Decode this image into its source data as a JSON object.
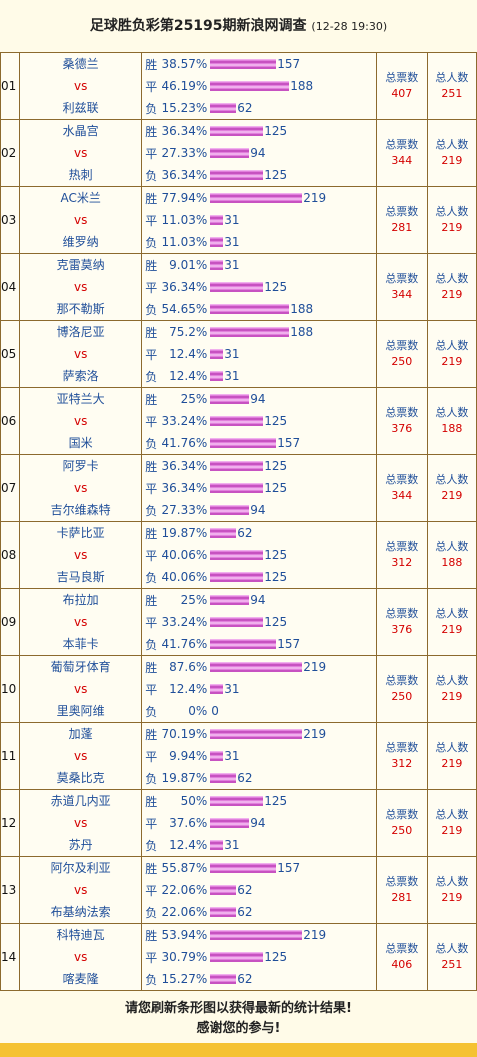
{
  "header": {
    "title": "足球胜负彩第25195期新浪网调查",
    "time": "(12-28 19:30)"
  },
  "stat_labels": {
    "votes": "总票数",
    "people": "总人数"
  },
  "matches": [
    {
      "num": "01",
      "home": "桑德兰",
      "vs": "vs",
      "away": "利兹联",
      "outcomes": [
        {
          "label": "胜",
          "pct": "38.57%",
          "count": "157"
        },
        {
          "label": "平",
          "pct": "46.19%",
          "count": "188"
        },
        {
          "label": "负",
          "pct": "15.23%",
          "count": "62"
        }
      ],
      "total_votes": "407",
      "total_people": "251"
    },
    {
      "num": "02",
      "home": "水晶宫",
      "vs": "vs",
      "away": "热刺",
      "outcomes": [
        {
          "label": "胜",
          "pct": "36.34%",
          "count": "125"
        },
        {
          "label": "平",
          "pct": "27.33%",
          "count": "94"
        },
        {
          "label": "负",
          "pct": "36.34%",
          "count": "125"
        }
      ],
      "total_votes": "344",
      "total_people": "219"
    },
    {
      "num": "03",
      "home": "AC米兰",
      "vs": "vs",
      "away": "维罗纳",
      "outcomes": [
        {
          "label": "胜",
          "pct": "77.94%",
          "count": "219"
        },
        {
          "label": "平",
          "pct": "11.03%",
          "count": "31"
        },
        {
          "label": "负",
          "pct": "11.03%",
          "count": "31"
        }
      ],
      "total_votes": "281",
      "total_people": "219"
    },
    {
      "num": "04",
      "home": "克雷莫纳",
      "vs": "vs",
      "away": "那不勒斯",
      "outcomes": [
        {
          "label": "胜",
          "pct": "9.01%",
          "count": "31"
        },
        {
          "label": "平",
          "pct": "36.34%",
          "count": "125"
        },
        {
          "label": "负",
          "pct": "54.65%",
          "count": "188"
        }
      ],
      "total_votes": "344",
      "total_people": "219"
    },
    {
      "num": "05",
      "home": "博洛尼亚",
      "vs": "vs",
      "away": "萨索洛",
      "outcomes": [
        {
          "label": "胜",
          "pct": "75.2%",
          "count": "188"
        },
        {
          "label": "平",
          "pct": "12.4%",
          "count": "31"
        },
        {
          "label": "负",
          "pct": "12.4%",
          "count": "31"
        }
      ],
      "total_votes": "250",
      "total_people": "219"
    },
    {
      "num": "06",
      "home": "亚特兰大",
      "vs": "vs",
      "away": "国米",
      "outcomes": [
        {
          "label": "胜",
          "pct": "25%",
          "count": "94"
        },
        {
          "label": "平",
          "pct": "33.24%",
          "count": "125"
        },
        {
          "label": "负",
          "pct": "41.76%",
          "count": "157"
        }
      ],
      "total_votes": "376",
      "total_people": "188"
    },
    {
      "num": "07",
      "home": "阿罗卡",
      "vs": "vs",
      "away": "吉尔维森特",
      "outcomes": [
        {
          "label": "胜",
          "pct": "36.34%",
          "count": "125"
        },
        {
          "label": "平",
          "pct": "36.34%",
          "count": "125"
        },
        {
          "label": "负",
          "pct": "27.33%",
          "count": "94"
        }
      ],
      "total_votes": "344",
      "total_people": "219"
    },
    {
      "num": "08",
      "home": "卡萨比亚",
      "vs": "vs",
      "away": "吉马良斯",
      "outcomes": [
        {
          "label": "胜",
          "pct": "19.87%",
          "count": "62"
        },
        {
          "label": "平",
          "pct": "40.06%",
          "count": "125"
        },
        {
          "label": "负",
          "pct": "40.06%",
          "count": "125"
        }
      ],
      "total_votes": "312",
      "total_people": "188"
    },
    {
      "num": "09",
      "home": "布拉加",
      "vs": "vs",
      "away": "本菲卡",
      "outcomes": [
        {
          "label": "胜",
          "pct": "25%",
          "count": "94"
        },
        {
          "label": "平",
          "pct": "33.24%",
          "count": "125"
        },
        {
          "label": "负",
          "pct": "41.76%",
          "count": "157"
        }
      ],
      "total_votes": "376",
      "total_people": "219"
    },
    {
      "num": "10",
      "home": "葡萄牙体育",
      "vs": "vs",
      "away": "里奥阿维",
      "outcomes": [
        {
          "label": "胜",
          "pct": "87.6%",
          "count": "219"
        },
        {
          "label": "平",
          "pct": "12.4%",
          "count": "31"
        },
        {
          "label": "负",
          "pct": "0%",
          "count": "0"
        }
      ],
      "total_votes": "250",
      "total_people": "219"
    },
    {
      "num": "11",
      "home": "加蓬",
      "vs": "vs",
      "away": "莫桑比克",
      "outcomes": [
        {
          "label": "胜",
          "pct": "70.19%",
          "count": "219"
        },
        {
          "label": "平",
          "pct": "9.94%",
          "count": "31"
        },
        {
          "label": "负",
          "pct": "19.87%",
          "count": "62"
        }
      ],
      "total_votes": "312",
      "total_people": "219"
    },
    {
      "num": "12",
      "home": "赤道几内亚",
      "vs": "vs",
      "away": "苏丹",
      "outcomes": [
        {
          "label": "胜",
          "pct": "50%",
          "count": "125"
        },
        {
          "label": "平",
          "pct": "37.6%",
          "count": "94"
        },
        {
          "label": "负",
          "pct": "12.4%",
          "count": "31"
        }
      ],
      "total_votes": "250",
      "total_people": "219"
    },
    {
      "num": "13",
      "home": "阿尔及利亚",
      "vs": "vs",
      "away": "布基纳法索",
      "outcomes": [
        {
          "label": "胜",
          "pct": "55.87%",
          "count": "157"
        },
        {
          "label": "平",
          "pct": "22.06%",
          "count": "62"
        },
        {
          "label": "负",
          "pct": "22.06%",
          "count": "62"
        }
      ],
      "total_votes": "281",
      "total_people": "219"
    },
    {
      "num": "14",
      "home": "科特迪瓦",
      "vs": "vs",
      "away": "喀麦隆",
      "outcomes": [
        {
          "label": "胜",
          "pct": "53.94%",
          "count": "219"
        },
        {
          "label": "平",
          "pct": "30.79%",
          "count": "125"
        },
        {
          "label": "负",
          "pct": "15.27%",
          "count": "62"
        }
      ],
      "total_votes": "406",
      "total_people": "251"
    }
  ],
  "footer": {
    "line1": "请您刷新条形图以获得最新的统计结果!",
    "line2": "感谢您的参与!"
  }
}
